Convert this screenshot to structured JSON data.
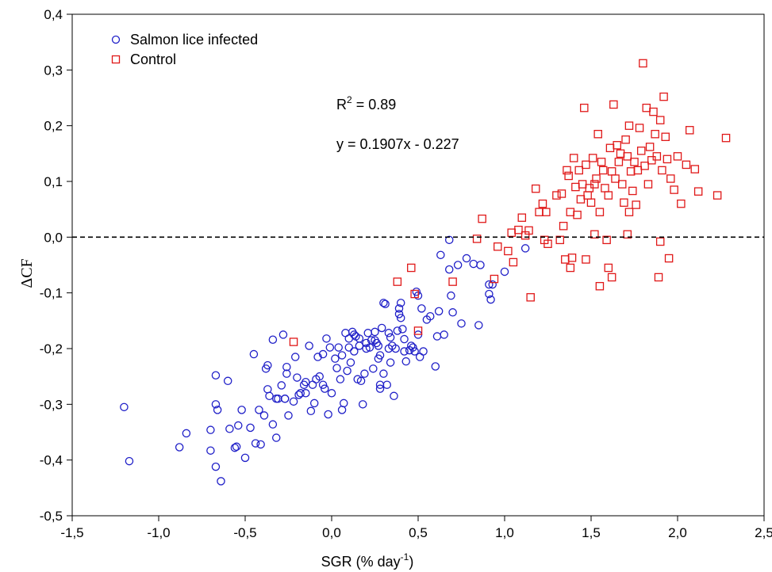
{
  "chart_data": {
    "type": "scatter",
    "x_label_main": "SGR (% day",
    "x_label_sup": "-1",
    "x_label_end": ")",
    "y_label": "ΔCF",
    "xlim": [
      -1.5,
      2.5
    ],
    "ylim": [
      -0.5,
      0.4
    ],
    "x_ticks": [
      "-1,5",
      "-1,0",
      "-0,5",
      "0,0",
      "0,5",
      "1,0",
      "1,5",
      "2,0",
      "2,5"
    ],
    "y_ticks": [
      "0,4",
      "0,3",
      "0,2",
      "0,1",
      "0,0",
      "-0,1",
      "-0,2",
      "-0,3",
      "-0,4",
      "-0,5"
    ],
    "reference_line_y": 0,
    "grid": false,
    "legend_position": "top-left",
    "annotations": {
      "r2_main": "R",
      "r2_sup": "2",
      "r2_rest": " = 0.89",
      "equation": "y = 0.1907x - 0.227"
    },
    "series": [
      {
        "name": "Salmon lice infected",
        "marker": "circle",
        "color": "#1f1fc8",
        "points": [
          [
            -1.2,
            -0.305
          ],
          [
            -1.17,
            -0.402
          ],
          [
            -0.88,
            -0.377
          ],
          [
            -0.84,
            -0.352
          ],
          [
            -0.7,
            -0.383
          ],
          [
            -0.7,
            -0.346
          ],
          [
            -0.67,
            -0.412
          ],
          [
            -0.67,
            -0.3
          ],
          [
            -0.67,
            -0.248
          ],
          [
            -0.66,
            -0.31
          ],
          [
            -0.64,
            -0.438
          ],
          [
            -0.6,
            -0.258
          ],
          [
            -0.59,
            -0.344
          ],
          [
            -0.56,
            -0.378
          ],
          [
            -0.55,
            -0.376
          ],
          [
            -0.54,
            -0.338
          ],
          [
            -0.52,
            -0.31
          ],
          [
            -0.5,
            -0.396
          ],
          [
            -0.47,
            -0.342
          ],
          [
            -0.45,
            -0.21
          ],
          [
            -0.44,
            -0.37
          ],
          [
            -0.42,
            -0.31
          ],
          [
            -0.41,
            -0.372
          ],
          [
            -0.39,
            -0.32
          ],
          [
            -0.38,
            -0.236
          ],
          [
            -0.37,
            -0.23
          ],
          [
            -0.37,
            -0.273
          ],
          [
            -0.36,
            -0.285
          ],
          [
            -0.34,
            -0.184
          ],
          [
            -0.34,
            -0.336
          ],
          [
            -0.32,
            -0.29
          ],
          [
            -0.32,
            -0.36
          ],
          [
            -0.31,
            -0.29
          ],
          [
            -0.29,
            -0.266
          ],
          [
            -0.28,
            -0.175
          ],
          [
            -0.27,
            -0.29
          ],
          [
            -0.27,
            -0.29
          ],
          [
            -0.26,
            -0.233
          ],
          [
            -0.26,
            -0.245
          ],
          [
            -0.25,
            -0.32
          ],
          [
            -0.22,
            -0.295
          ],
          [
            -0.21,
            -0.215
          ],
          [
            -0.2,
            -0.252
          ],
          [
            -0.19,
            -0.283
          ],
          [
            -0.18,
            -0.28
          ],
          [
            -0.16,
            -0.265
          ],
          [
            -0.15,
            -0.26
          ],
          [
            -0.13,
            -0.195
          ],
          [
            -0.12,
            -0.312
          ],
          [
            -0.11,
            -0.265
          ],
          [
            -0.1,
            -0.298
          ],
          [
            -0.09,
            -0.255
          ],
          [
            -0.08,
            -0.215
          ],
          [
            -0.07,
            -0.25
          ],
          [
            -0.05,
            -0.265
          ],
          [
            -0.04,
            -0.272
          ],
          [
            -0.03,
            -0.182
          ],
          [
            -0.02,
            -0.318
          ],
          [
            -0.01,
            -0.198
          ],
          [
            0.0,
            -0.28
          ],
          [
            0.02,
            -0.218
          ],
          [
            0.03,
            -0.235
          ],
          [
            0.04,
            -0.198
          ],
          [
            0.05,
            -0.255
          ],
          [
            0.06,
            -0.31
          ],
          [
            0.07,
            -0.298
          ],
          [
            0.08,
            -0.172
          ],
          [
            0.09,
            -0.24
          ],
          [
            0.1,
            -0.182
          ],
          [
            0.1,
            -0.198
          ],
          [
            0.11,
            -0.225
          ],
          [
            0.12,
            -0.17
          ],
          [
            0.13,
            -0.175
          ],
          [
            0.14,
            -0.178
          ],
          [
            0.15,
            -0.255
          ],
          [
            0.16,
            -0.195
          ],
          [
            0.16,
            -0.182
          ],
          [
            0.17,
            -0.258
          ],
          [
            0.18,
            -0.3
          ],
          [
            0.19,
            -0.245
          ],
          [
            0.2,
            -0.2
          ],
          [
            0.21,
            -0.172
          ],
          [
            0.22,
            -0.198
          ],
          [
            0.23,
            -0.185
          ],
          [
            0.24,
            -0.236
          ],
          [
            0.25,
            -0.185
          ],
          [
            0.25,
            -0.17
          ],
          [
            0.26,
            -0.19
          ],
          [
            0.27,
            -0.218
          ],
          [
            0.27,
            -0.195
          ],
          [
            0.28,
            -0.265
          ],
          [
            0.28,
            -0.272
          ],
          [
            0.29,
            -0.163
          ],
          [
            0.3,
            -0.245
          ],
          [
            0.3,
            -0.118
          ],
          [
            0.31,
            -0.12
          ],
          [
            0.32,
            -0.265
          ],
          [
            0.33,
            -0.2
          ],
          [
            0.33,
            -0.172
          ],
          [
            0.34,
            -0.225
          ],
          [
            0.34,
            -0.18
          ],
          [
            0.35,
            -0.195
          ],
          [
            0.36,
            -0.285
          ],
          [
            0.37,
            -0.2
          ],
          [
            0.38,
            -0.168
          ],
          [
            0.39,
            -0.128
          ],
          [
            0.39,
            -0.138
          ],
          [
            0.4,
            -0.145
          ],
          [
            0.41,
            -0.165
          ],
          [
            0.42,
            -0.205
          ],
          [
            0.42,
            -0.183
          ],
          [
            0.43,
            -0.223
          ],
          [
            0.45,
            -0.203
          ],
          [
            0.46,
            -0.195
          ],
          [
            0.47,
            -0.198
          ],
          [
            0.48,
            -0.205
          ],
          [
            0.49,
            -0.098
          ],
          [
            0.5,
            -0.105
          ],
          [
            0.5,
            -0.175
          ],
          [
            0.51,
            -0.215
          ],
          [
            0.52,
            -0.128
          ],
          [
            0.53,
            -0.205
          ],
          [
            0.55,
            -0.148
          ],
          [
            0.57,
            -0.142
          ],
          [
            0.6,
            -0.232
          ],
          [
            0.61,
            -0.178
          ],
          [
            0.62,
            -0.133
          ],
          [
            0.63,
            -0.032
          ],
          [
            0.65,
            -0.175
          ],
          [
            0.68,
            -0.005
          ],
          [
            0.68,
            -0.058
          ],
          [
            0.69,
            -0.105
          ],
          [
            0.7,
            -0.135
          ],
          [
            0.73,
            -0.05
          ],
          [
            0.75,
            -0.155
          ],
          [
            0.78,
            -0.038
          ],
          [
            0.82,
            -0.048
          ],
          [
            0.85,
            -0.158
          ],
          [
            0.86,
            -0.05
          ],
          [
            0.91,
            -0.085
          ],
          [
            0.91,
            -0.102
          ],
          [
            0.92,
            -0.112
          ],
          [
            0.93,
            -0.085
          ],
          [
            1.0,
            -0.062
          ],
          [
            1.12,
            -0.02
          ],
          [
            0.4,
            -0.118
          ],
          [
            0.28,
            -0.212
          ],
          [
            0.2,
            -0.19
          ],
          [
            0.13,
            -0.205
          ],
          [
            0.06,
            -0.212
          ],
          [
            -0.05,
            -0.21
          ],
          [
            -0.15,
            -0.28
          ]
        ]
      },
      {
        "name": "Control",
        "marker": "square",
        "color": "#e01818",
        "points": [
          [
            -0.22,
            -0.188
          ],
          [
            0.38,
            -0.08
          ],
          [
            0.46,
            -0.055
          ],
          [
            0.48,
            -0.102
          ],
          [
            0.5,
            -0.168
          ],
          [
            0.7,
            -0.08
          ],
          [
            0.84,
            -0.003
          ],
          [
            0.87,
            0.033
          ],
          [
            0.94,
            -0.075
          ],
          [
            0.96,
            -0.017
          ],
          [
            1.02,
            -0.025
          ],
          [
            1.04,
            0.008
          ],
          [
            1.05,
            -0.045
          ],
          [
            1.08,
            0.013
          ],
          [
            1.1,
            0.035
          ],
          [
            1.12,
            0.003
          ],
          [
            1.14,
            0.012
          ],
          [
            1.15,
            -0.108
          ],
          [
            1.18,
            0.087
          ],
          [
            1.2,
            0.045
          ],
          [
            1.22,
            0.06
          ],
          [
            1.23,
            -0.005
          ],
          [
            1.24,
            0.045
          ],
          [
            1.25,
            -0.012
          ],
          [
            1.3,
            0.075
          ],
          [
            1.32,
            -0.005
          ],
          [
            1.33,
            0.078
          ],
          [
            1.34,
            0.02
          ],
          [
            1.35,
            -0.04
          ],
          [
            1.36,
            0.12
          ],
          [
            1.37,
            0.11
          ],
          [
            1.38,
            0.045
          ],
          [
            1.39,
            -0.037
          ],
          [
            1.4,
            0.142
          ],
          [
            1.41,
            0.09
          ],
          [
            1.42,
            0.04
          ],
          [
            1.43,
            0.12
          ],
          [
            1.44,
            0.068
          ],
          [
            1.45,
            0.095
          ],
          [
            1.46,
            0.232
          ],
          [
            1.47,
            0.13
          ],
          [
            1.48,
            0.075
          ],
          [
            1.49,
            0.088
          ],
          [
            1.5,
            0.062
          ],
          [
            1.51,
            0.142
          ],
          [
            1.52,
            0.095
          ],
          [
            1.53,
            0.105
          ],
          [
            1.54,
            0.185
          ],
          [
            1.55,
            0.045
          ],
          [
            1.56,
            0.135
          ],
          [
            1.57,
            0.12
          ],
          [
            1.58,
            0.088
          ],
          [
            1.59,
            -0.005
          ],
          [
            1.6,
            0.075
          ],
          [
            1.61,
            0.16
          ],
          [
            1.62,
            0.118
          ],
          [
            1.63,
            0.238
          ],
          [
            1.64,
            0.105
          ],
          [
            1.65,
            0.165
          ],
          [
            1.66,
            0.135
          ],
          [
            1.67,
            0.15
          ],
          [
            1.68,
            0.095
          ],
          [
            1.69,
            0.062
          ],
          [
            1.7,
            0.175
          ],
          [
            1.71,
            0.145
          ],
          [
            1.72,
            0.2
          ],
          [
            1.73,
            0.118
          ],
          [
            1.74,
            0.083
          ],
          [
            1.75,
            0.135
          ],
          [
            1.76,
            0.058
          ],
          [
            1.77,
            0.12
          ],
          [
            1.78,
            0.196
          ],
          [
            1.79,
            0.155
          ],
          [
            1.8,
            0.312
          ],
          [
            1.81,
            0.128
          ],
          [
            1.82,
            0.232
          ],
          [
            1.83,
            0.095
          ],
          [
            1.84,
            0.162
          ],
          [
            1.85,
            0.138
          ],
          [
            1.86,
            0.225
          ],
          [
            1.87,
            0.185
          ],
          [
            1.88,
            0.145
          ],
          [
            1.89,
            -0.072
          ],
          [
            1.9,
            0.21
          ],
          [
            1.91,
            0.12
          ],
          [
            1.92,
            0.252
          ],
          [
            1.93,
            0.18
          ],
          [
            1.94,
            0.14
          ],
          [
            1.95,
            -0.038
          ],
          [
            1.96,
            0.105
          ],
          [
            1.98,
            0.085
          ],
          [
            2.0,
            0.145
          ],
          [
            2.02,
            0.06
          ],
          [
            2.05,
            0.13
          ],
          [
            2.07,
            0.192
          ],
          [
            2.1,
            0.122
          ],
          [
            2.12,
            0.082
          ],
          [
            2.23,
            0.075
          ],
          [
            2.28,
            0.178
          ],
          [
            1.6,
            -0.055
          ],
          [
            1.62,
            -0.072
          ],
          [
            1.55,
            -0.088
          ],
          [
            1.47,
            -0.04
          ],
          [
            1.38,
            -0.055
          ],
          [
            1.52,
            0.005
          ],
          [
            1.71,
            0.005
          ],
          [
            1.9,
            -0.008
          ],
          [
            1.72,
            0.045
          ]
        ]
      }
    ]
  }
}
